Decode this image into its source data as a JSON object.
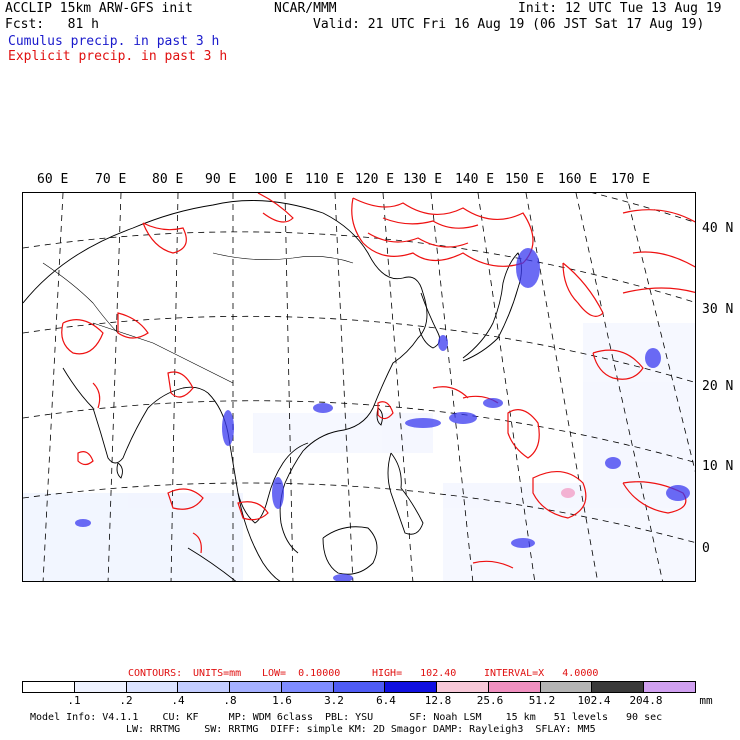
{
  "header": {
    "title_left": "ACCLIP 15km ARW-GFS init",
    "center": "NCAR/MMM",
    "init": "Init: 12 UTC Tue 13 Aug 19",
    "fcst": "Fcst:   81 h",
    "valid": "Valid: 21 UTC Fri 16 Aug 19 (06 JST Sat 17 Aug 19)",
    "legend_cumulus": "Cumulus precip. in past 3 h",
    "legend_explicit": "Explicit precip. in past 3 h"
  },
  "map": {
    "lon_labels": [
      "60 E",
      "70 E",
      "80 E",
      "90 E",
      "100 E",
      "110 E",
      "120 E",
      "130 E",
      "140 E",
      "150 E",
      "160 E",
      "170 E"
    ],
    "lat_labels": [
      "40 N",
      "30 N",
      "20 N",
      "10 N",
      "0"
    ],
    "colors": {
      "cumulus": "#2a2aee",
      "explicit": "#ee1111",
      "coast": "#000000",
      "grid": "#000000"
    }
  },
  "contours": {
    "label": "CONTOURS:",
    "units": "UNITS=mm",
    "low": "LOW=  0.10000",
    "high": "HIGH=   102.40",
    "interval": "INTERVAL=X   4.0000"
  },
  "colorbar": {
    "labels": [
      ".1",
      ".2",
      ".4",
      ".8",
      "1.6",
      "3.2",
      "6.4",
      "12.8",
      "25.6",
      "51.2",
      "102.4",
      "204.8"
    ],
    "unit": "mm",
    "colors": [
      "#ffffff",
      "#eef2ff",
      "#dbe3ff",
      "#c3cdff",
      "#a5b0ff",
      "#7f8cff",
      "#4f5cf5",
      "#1010e0",
      "#f7c8d8",
      "#f090c0",
      "#b4b4b4",
      "#3a3a3a",
      "#d0a0f0"
    ]
  },
  "footer": {
    "line1": "Model Info: V4.1.1    CU: KF     MP: WDM 6class  PBL: YSU      SF: Noah LSM    15 km   51 levels   90 sec",
    "line2": "LW: RRTMG    SW: RRTMG  DIFF: simple KM: 2D Smagor DAMP: Rayleigh3  SFLAY: MM5"
  }
}
